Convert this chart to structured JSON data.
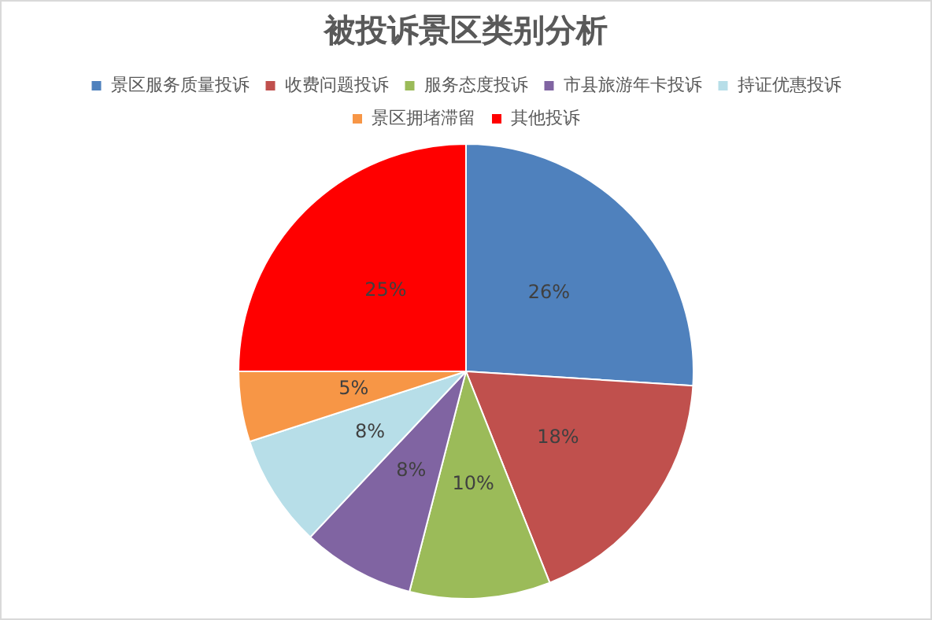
{
  "chart_data": {
    "type": "pie",
    "title": "被投诉景区类别分析",
    "categories": [
      "景区服务质量投诉",
      "收费问题投诉",
      "服务态度投诉",
      "市县旅游年卡投诉",
      "持证优惠投诉",
      "景区拥堵滞留",
      "其他投诉"
    ],
    "values": [
      26,
      18,
      10,
      8,
      8,
      5,
      25
    ],
    "colors": [
      "#4f81bd",
      "#c0504d",
      "#9bbb59",
      "#8064a2",
      "#b7dee8",
      "#f79646",
      "#ff0000"
    ],
    "value_labels": [
      "26%",
      "18%",
      "10%",
      "8%",
      "8%",
      "5%",
      "25%"
    ],
    "legend": "top"
  }
}
